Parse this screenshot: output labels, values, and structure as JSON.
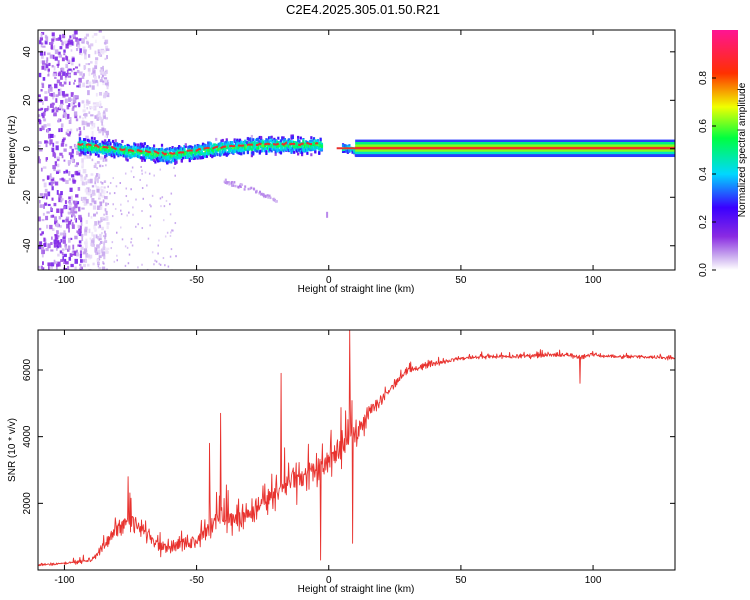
{
  "title": "C2E4.2025.305.01.50.R21",
  "colors": {
    "snr_line": "#e8322e",
    "ridge": "#e8322e",
    "background": "#ffffff",
    "colorbar_stops": [
      "#ffffff",
      "#c8a8ee",
      "#8a2be2",
      "#3a00ff",
      "#00d8ff",
      "#00ff40",
      "#f0ff00",
      "#ff3000",
      "#ff1493"
    ]
  },
  "chart_data": [
    {
      "type": "heatmap",
      "title": "C2E4.2025.305.01.50.R21",
      "xlabel": "Height of straight line (km)",
      "ylabel": "Frequency (Hz)",
      "xlim": [
        -110,
        131
      ],
      "ylim": [
        -50,
        49
      ],
      "xticks": [
        -100,
        -50,
        0,
        50,
        100
      ],
      "yticks": [
        -40,
        -20,
        0,
        20,
        40
      ],
      "xtick_labels": [
        "-100",
        "-50",
        "0",
        "50",
        "100"
      ],
      "ytick_labels": [
        "-40",
        "-20",
        "0",
        "20",
        "40"
      ],
      "ridge": {
        "x": [
          -95,
          -80,
          -60,
          -40,
          -25,
          -15,
          -4,
          5,
          10,
          20,
          60,
          100,
          131
        ],
        "frequency_hz": [
          2,
          0,
          -2,
          1,
          2,
          2,
          2,
          1,
          0,
          0,
          0,
          0,
          0
        ]
      },
      "noise_region_x": [
        -110,
        -88
      ],
      "secondary_branch": {
        "x": [
          -40,
          -30,
          -20
        ],
        "frequency_hz": [
          -13,
          -16,
          -21
        ]
      },
      "colorbar": {
        "label": "Normalized spectral amplitude",
        "range": [
          0.0,
          1.0
        ],
        "ticks": [
          0.0,
          0.2,
          0.4,
          0.6,
          0.8
        ],
        "tick_labels": [
          "0.0",
          "0.2",
          "0.4",
          "0.6",
          "0.8"
        ]
      }
    },
    {
      "type": "line",
      "xlabel": "Height of straight line (km)",
      "ylabel": "SNR (10 * v/v)",
      "xlim": [
        -110,
        131
      ],
      "ylim": [
        0,
        7200
      ],
      "xticks": [
        -100,
        -50,
        0,
        50,
        100
      ],
      "yticks": [
        2000,
        4000,
        6000
      ],
      "xtick_labels": [
        "-100",
        "-50",
        "0",
        "50",
        "100"
      ],
      "ytick_labels": [
        "2000",
        "4000",
        "6000"
      ],
      "envelope": {
        "x": [
          -110,
          -100,
          -90,
          -85,
          -80,
          -75,
          -70,
          -65,
          -60,
          -55,
          -50,
          -45,
          -40,
          -35,
          -30,
          -25,
          -20,
          -15,
          -10,
          -5,
          0,
          5,
          8,
          10,
          15,
          20,
          25,
          30,
          40,
          50,
          60,
          70,
          80,
          90,
          95,
          100,
          110,
          120,
          131
        ],
        "mean": [
          150,
          200,
          300,
          700,
          1300,
          1500,
          1200,
          800,
          700,
          800,
          900,
          1300,
          1600,
          1500,
          1700,
          2000,
          2200,
          2700,
          2800,
          3000,
          3200,
          3600,
          4200,
          4000,
          4700,
          5100,
          5600,
          6000,
          6200,
          6350,
          6400,
          6400,
          6450,
          6450,
          6400,
          6450,
          6400,
          6400,
          6350
        ],
        "spread": [
          100,
          100,
          200,
          400,
          700,
          900,
          800,
          600,
          500,
          600,
          700,
          900,
          1100,
          1000,
          1100,
          1200,
          1200,
          1300,
          1300,
          1300,
          1300,
          1300,
          1200,
          1000,
          900,
          600,
          400,
          250,
          200,
          150,
          150,
          150,
          200,
          200,
          200,
          150,
          150,
          150,
          150
        ]
      },
      "spikes": [
        {
          "x": 8,
          "value": 7200
        },
        {
          "x": 9,
          "value": 800
        },
        {
          "x": -3,
          "value": 300
        },
        {
          "x": -18,
          "value": 5900
        },
        {
          "x": -41,
          "value": 4700
        },
        {
          "x": -45,
          "value": 3800
        },
        {
          "x": -76,
          "value": 2800
        },
        {
          "x": 95,
          "value": 5600
        }
      ]
    }
  ]
}
